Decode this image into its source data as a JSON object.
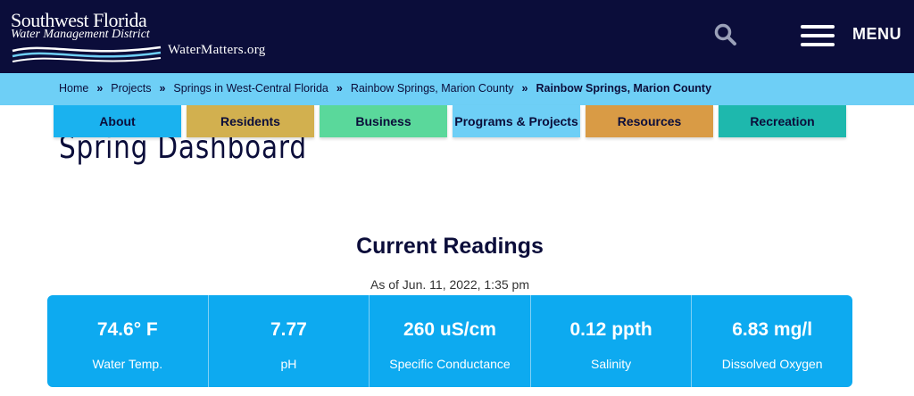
{
  "header": {
    "logo_line1": "Southwest Florida",
    "logo_line2": "Water Management District",
    "logo_site": "WaterMatters.org",
    "search_icon": "search-icon",
    "menu_icon": "hamburger-icon",
    "menu_label": "MENU",
    "background": "#0b0d3a"
  },
  "breadcrumb": {
    "items": [
      "Home",
      "Projects",
      "Springs in West-Central Florida",
      "Rainbow Springs, Marion County"
    ],
    "separator": "»",
    "current": "Rainbow Springs, Marion County",
    "background": "#6ecff6"
  },
  "page": {
    "title": "Spring Dashboard"
  },
  "nav": {
    "tabs": [
      {
        "label": "About",
        "color": "#1ab2ef"
      },
      {
        "label": "Residents",
        "color": "#d2b04f"
      },
      {
        "label": "Business",
        "color": "#5ad89b"
      },
      {
        "label": "Programs & Projects",
        "color": "#6ecff6"
      },
      {
        "label": "Resources",
        "color": "#d99b45"
      },
      {
        "label": "Recreation",
        "color": "#1eb8ad"
      }
    ]
  },
  "readings": {
    "title": "Current Readings",
    "as_of": "As of Jun. 11, 2022, 1:35 pm",
    "panel_color": "#0daaf0",
    "items": [
      {
        "value": "74.6° F",
        "label": "Water Temp."
      },
      {
        "value": "7.77",
        "label": "pH"
      },
      {
        "value": "260 uS/cm",
        "label": "Specific Conductance"
      },
      {
        "value": "0.12 ppth",
        "label": "Salinity"
      },
      {
        "value": "6.83 mg/l",
        "label": "Dissolved Oxygen"
      }
    ]
  }
}
